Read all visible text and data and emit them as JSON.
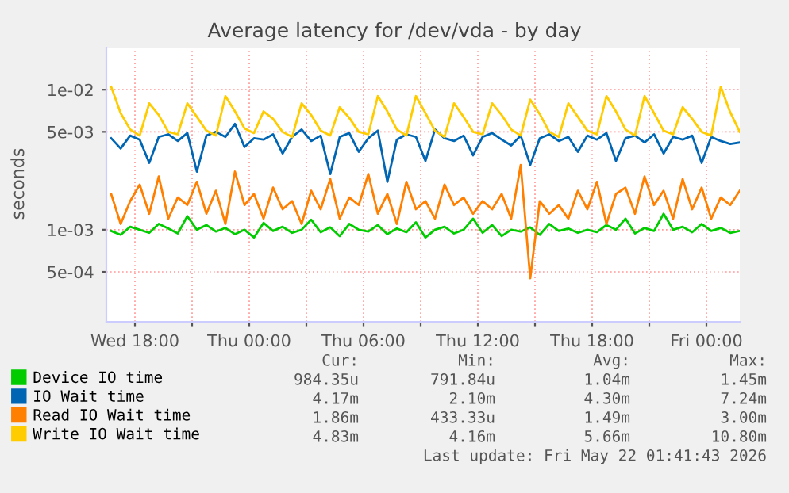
{
  "chart_data": {
    "type": "line",
    "title": "Average latency for /dev/vda - by day",
    "ylabel": "seconds",
    "x": [
      "2026-05-20T16:45",
      "2026-05-20T17:15",
      "2026-05-20T17:45",
      "2026-05-20T18:15",
      "2026-05-20T18:45",
      "2026-05-20T19:15",
      "2026-05-20T19:45",
      "2026-05-20T20:15",
      "2026-05-20T20:45",
      "2026-05-20T21:15",
      "2026-05-20T21:45",
      "2026-05-20T22:15",
      "2026-05-20T22:45",
      "2026-05-20T23:15",
      "2026-05-20T23:45",
      "2026-05-21T00:15",
      "2026-05-21T00:45",
      "2026-05-21T01:15",
      "2026-05-21T01:45",
      "2026-05-21T02:15",
      "2026-05-21T02:45",
      "2026-05-21T03:15",
      "2026-05-21T03:45",
      "2026-05-21T04:15",
      "2026-05-21T04:45",
      "2026-05-21T05:15",
      "2026-05-21T05:45",
      "2026-05-21T06:15",
      "2026-05-21T06:45",
      "2026-05-21T07:15",
      "2026-05-21T07:45",
      "2026-05-21T08:15",
      "2026-05-21T08:45",
      "2026-05-21T09:15",
      "2026-05-21T09:45",
      "2026-05-21T10:15",
      "2026-05-21T10:45",
      "2026-05-21T11:15",
      "2026-05-21T11:45",
      "2026-05-21T12:15",
      "2026-05-21T12:45",
      "2026-05-21T13:15",
      "2026-05-21T13:45",
      "2026-05-21T14:15",
      "2026-05-21T14:45",
      "2026-05-21T15:15",
      "2026-05-21T15:45",
      "2026-05-21T16:15",
      "2026-05-21T16:45",
      "2026-05-21T17:15",
      "2026-05-21T17:45",
      "2026-05-21T18:15",
      "2026-05-21T18:45",
      "2026-05-21T19:15",
      "2026-05-21T19:45",
      "2026-05-21T20:15",
      "2026-05-21T20:45",
      "2026-05-21T21:15",
      "2026-05-21T21:45",
      "2026-05-21T22:15",
      "2026-05-21T22:45",
      "2026-05-21T23:15",
      "2026-05-21T23:45",
      "2026-05-22T00:15",
      "2026-05-22T00:45",
      "2026-05-22T01:15",
      "2026-05-22T01:45"
    ],
    "series": [
      {
        "name": "Device IO time",
        "color": "#00cc00",
        "values": [
          0.00098,
          0.00092,
          0.00105,
          0.001,
          0.00095,
          0.0011,
          0.00102,
          0.00094,
          0.00125,
          0.001,
          0.00108,
          0.00097,
          0.00103,
          0.00093,
          0.001,
          0.00088,
          0.00112,
          0.00098,
          0.00105,
          0.00095,
          0.001,
          0.00118,
          0.00096,
          0.00104,
          0.0009,
          0.0011,
          0.001,
          0.00097,
          0.00108,
          0.00093,
          0.00102,
          0.00096,
          0.00113,
          0.00088,
          0.001,
          0.00105,
          0.00094,
          0.001,
          0.0012,
          0.00095,
          0.00108,
          0.0009,
          0.001,
          0.00097,
          0.00104,
          0.00092,
          0.0011,
          0.00098,
          0.00102,
          0.00095,
          0.001,
          0.00096,
          0.00108,
          0.001,
          0.0012,
          0.00094,
          0.00103,
          0.00098,
          0.0013,
          0.001,
          0.00105,
          0.00096,
          0.0011,
          0.00098,
          0.00103,
          0.00095,
          0.00098
        ]
      },
      {
        "name": "IO Wait time",
        "color": "#0066b3",
        "values": [
          0.0045,
          0.0038,
          0.0047,
          0.0044,
          0.003,
          0.0046,
          0.0048,
          0.0043,
          0.0049,
          0.0026,
          0.0047,
          0.005,
          0.0046,
          0.0057,
          0.0039,
          0.0045,
          0.0044,
          0.0048,
          0.0035,
          0.0046,
          0.0052,
          0.0043,
          0.0047,
          0.0025,
          0.0046,
          0.0049,
          0.0036,
          0.0045,
          0.0051,
          0.0022,
          0.0044,
          0.0048,
          0.0046,
          0.0031,
          0.0052,
          0.0045,
          0.0043,
          0.0047,
          0.0034,
          0.0046,
          0.0049,
          0.0044,
          0.004,
          0.0047,
          0.0029,
          0.0045,
          0.0048,
          0.0043,
          0.0046,
          0.0036,
          0.0047,
          0.0044,
          0.0049,
          0.0031,
          0.0045,
          0.0047,
          0.0042,
          0.0048,
          0.0035,
          0.0046,
          0.0044,
          0.0047,
          0.003,
          0.0046,
          0.0043,
          0.0041,
          0.0042
        ]
      },
      {
        "name": "Read IO Wait time",
        "color": "#ff8000",
        "values": [
          0.0018,
          0.0011,
          0.0016,
          0.0021,
          0.0013,
          0.0024,
          0.0012,
          0.0017,
          0.0015,
          0.0022,
          0.0013,
          0.0019,
          0.0011,
          0.0026,
          0.0015,
          0.0018,
          0.0012,
          0.002,
          0.0014,
          0.0016,
          0.0011,
          0.0019,
          0.0014,
          0.0023,
          0.0012,
          0.0017,
          0.0015,
          0.0025,
          0.0013,
          0.0018,
          0.0011,
          0.0022,
          0.0014,
          0.0016,
          0.0012,
          0.0021,
          0.0015,
          0.0017,
          0.0013,
          0.0016,
          0.0014,
          0.0018,
          0.0012,
          0.0029,
          0.00045,
          0.0016,
          0.0013,
          0.0015,
          0.0012,
          0.0019,
          0.0014,
          0.0022,
          0.0011,
          0.0018,
          0.002,
          0.0013,
          0.0024,
          0.0015,
          0.0019,
          0.0012,
          0.0023,
          0.0014,
          0.002,
          0.0012,
          0.0017,
          0.0015,
          0.0019
        ]
      },
      {
        "name": "Write IO Wait time",
        "color": "#ffcc00",
        "values": [
          0.0105,
          0.0068,
          0.0052,
          0.0047,
          0.008,
          0.0066,
          0.005,
          0.0048,
          0.008,
          0.0064,
          0.0051,
          0.0047,
          0.009,
          0.007,
          0.0053,
          0.0049,
          0.007,
          0.0062,
          0.005,
          0.0046,
          0.008,
          0.0066,
          0.0051,
          0.0047,
          0.0075,
          0.0063,
          0.005,
          0.0048,
          0.009,
          0.007,
          0.0052,
          0.0047,
          0.009,
          0.0068,
          0.0051,
          0.0046,
          0.008,
          0.0064,
          0.005,
          0.0048,
          0.008,
          0.0066,
          0.0052,
          0.0047,
          0.0085,
          0.0067,
          0.005,
          0.0046,
          0.008,
          0.0064,
          0.0051,
          0.0048,
          0.009,
          0.007,
          0.0052,
          0.0047,
          0.009,
          0.0068,
          0.0051,
          0.0048,
          0.0075,
          0.0062,
          0.005,
          0.0047,
          0.0105,
          0.0069,
          0.005
        ]
      }
    ],
    "log": "y",
    "xlim": [
      "2026-05-20T16:30",
      "2026-05-22T01:45"
    ],
    "ylim": [
      0.00022,
      0.02
    ],
    "xticks": [
      {
        "value": "2026-05-20T18:00",
        "label": "Wed 18:00"
      },
      {
        "value": "2026-05-20T21:00",
        "label": null
      },
      {
        "value": "2026-05-21T00:00",
        "label": "Thu 00:00"
      },
      {
        "value": "2026-05-21T03:00",
        "label": null
      },
      {
        "value": "2026-05-21T06:00",
        "label": "Thu 06:00"
      },
      {
        "value": "2026-05-21T09:00",
        "label": null
      },
      {
        "value": "2026-05-21T12:00",
        "label": "Thu 12:00"
      },
      {
        "value": "2026-05-21T15:00",
        "label": null
      },
      {
        "value": "2026-05-21T18:00",
        "label": "Thu 18:00"
      },
      {
        "value": "2026-05-21T21:00",
        "label": null
      },
      {
        "value": "2026-05-22T00:00",
        "label": "Fri 00:00"
      }
    ],
    "yticks": [
      {
        "value": 0.0005,
        "label": "5e-04"
      },
      {
        "value": 0.001,
        "label": "1e-03"
      },
      {
        "value": 0.005,
        "label": "5e-03"
      },
      {
        "value": 0.01,
        "label": "1e-02"
      }
    ],
    "grid": true,
    "legend": "bottom",
    "marker": "none",
    "line_style": "solid",
    "annotations": [
      "Cur:",
      "Min:",
      "Avg:",
      "Max:",
      "984.35u",
      "791.84u",
      "1.04m",
      "1.45m",
      "4.17m",
      "2.10m",
      "4.30m",
      "7.24m",
      "1.86m",
      "433.33u",
      "1.49m",
      "3.00m",
      "4.83m",
      "4.16m",
      "5.66m",
      "10.80m",
      "Last update: Fri May 22 01:41:43 2026"
    ]
  }
}
